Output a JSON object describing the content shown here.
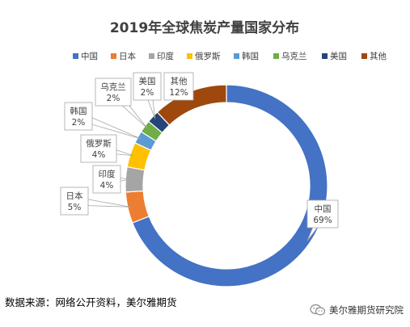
{
  "chart_data": {
    "type": "pie",
    "title": "2019年全球焦炭产量国家分布",
    "categories": [
      "中国",
      "日本",
      "印度",
      "俄罗斯",
      "韩国",
      "乌克兰",
      "美国",
      "其他"
    ],
    "values": [
      69,
      5,
      4,
      4,
      2,
      2,
      2,
      12
    ],
    "value_labels": [
      "69%",
      "5%",
      "4%",
      "4%",
      "2%",
      "2%",
      "2%",
      "12%"
    ],
    "colors": [
      "#4472C4",
      "#ED7D31",
      "#A5A5A5",
      "#FFC000",
      "#5B9BD5",
      "#70AD47",
      "#264478",
      "#9E480E"
    ],
    "style": "doughnut",
    "legend_position": "top"
  },
  "source_text": "数据来源：网络公开资料，美尔雅期货",
  "watermark": {
    "icon": "wechat-icon",
    "text": "美尔雅期货研究院"
  }
}
